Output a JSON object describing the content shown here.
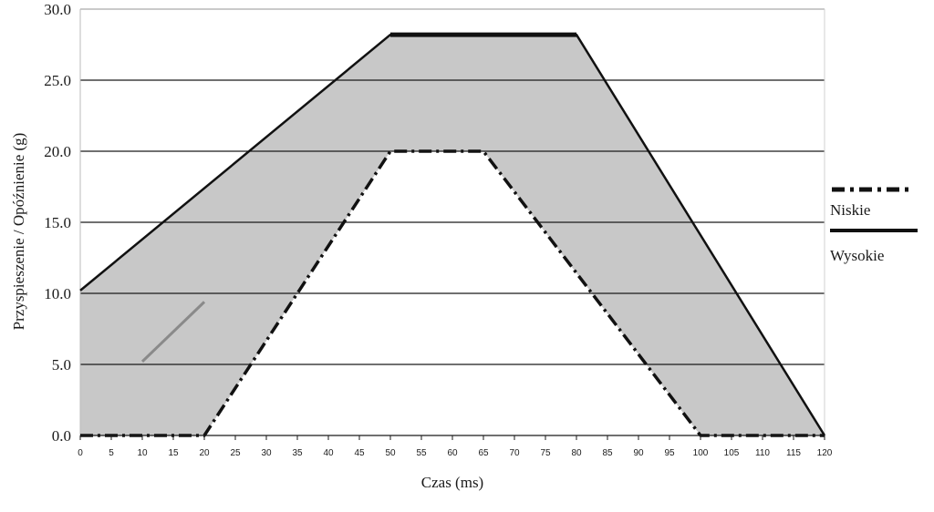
{
  "chart_data": {
    "type": "area",
    "xlabel": "Czas  (ms)",
    "ylabel": "Przyspieszenie  /  Opóźnienie  (g)",
    "xlim": [
      0,
      120
    ],
    "ylim": [
      0,
      30
    ],
    "x_ticks": [
      0,
      5,
      10,
      15,
      20,
      25,
      30,
      35,
      40,
      45,
      50,
      55,
      60,
      65,
      70,
      75,
      80,
      85,
      90,
      95,
      100,
      105,
      110,
      115,
      120
    ],
    "y_ticks": [
      0,
      5,
      10,
      15,
      20,
      25,
      30
    ],
    "y_tick_labels": [
      "0.0",
      "5.0",
      "10.0",
      "15.0",
      "20.0",
      "25.0",
      "30.0"
    ],
    "grid": "horizontal",
    "legend_position": "right",
    "band_fill_color": "#c8c8c8",
    "series": [
      {
        "name": "Niskie",
        "line_style": "dash-dot",
        "color": "#111111",
        "points": [
          [
            0,
            0
          ],
          [
            20,
            0
          ],
          [
            50,
            20
          ],
          [
            65,
            20
          ],
          [
            100,
            0
          ],
          [
            120,
            0
          ]
        ]
      },
      {
        "name": "Wysokie",
        "line_style": "solid",
        "color": "#111111",
        "points": [
          [
            0,
            10.2
          ],
          [
            50,
            28.2
          ],
          [
            80,
            28.2
          ],
          [
            120,
            0
          ]
        ]
      }
    ],
    "annotation_segment": {
      "color": "#8a8a8a",
      "points": [
        [
          10,
          5.2
        ],
        [
          20,
          9.4
        ]
      ]
    }
  }
}
